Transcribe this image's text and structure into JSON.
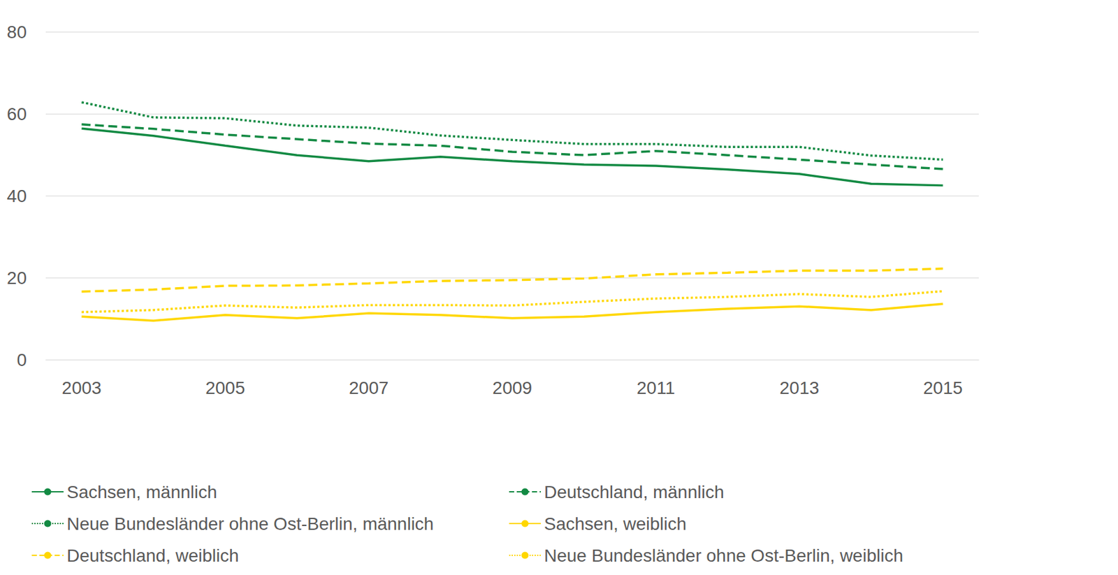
{
  "chart_data": {
    "type": "line",
    "categories": [
      2003,
      null,
      2005,
      null,
      2007,
      null,
      2009,
      null,
      2011,
      null,
      2013,
      null,
      2015
    ],
    "ylim": [
      0,
      80
    ],
    "yticks": [
      0,
      20,
      40,
      60,
      80
    ],
    "grid": true,
    "legend": "bottom",
    "series": [
      {
        "name": "Sachsen, männlich",
        "color": "#138a43",
        "line_style": "solid",
        "values": [
          56.4,
          54.6,
          52.2,
          49.9,
          48.4,
          49.5,
          48.4,
          47.6,
          47.3,
          46.4,
          45.3,
          42.9,
          42.5
        ]
      },
      {
        "name": "Deutschland, männlich",
        "color": "#138a43",
        "line_style": "dashed",
        "values": [
          57.4,
          56.3,
          54.9,
          53.8,
          52.7,
          52.2,
          50.7,
          49.9,
          50.9,
          49.9,
          48.8,
          47.6,
          46.5
        ]
      },
      {
        "name": "Neue Bundesländer ohne Ost-Berlin, männlich",
        "color": "#138a43",
        "line_style": "dotted",
        "values": [
          62.8,
          59.1,
          58.9,
          57.1,
          56.6,
          54.7,
          53.6,
          52.6,
          52.6,
          51.9,
          51.9,
          49.8,
          48.8
        ]
      },
      {
        "name": "Sachsen, weiblich",
        "color": "#ffd700",
        "line_style": "solid",
        "values": [
          10.5,
          9.5,
          10.9,
          10.1,
          11.3,
          10.9,
          10.1,
          10.5,
          11.6,
          12.4,
          13.0,
          12.1,
          13.6
        ]
      },
      {
        "name": "Deutschland, weiblich",
        "color": "#ffd700",
        "line_style": "dashed",
        "values": [
          16.6,
          17.1,
          18.0,
          18.1,
          18.6,
          19.2,
          19.4,
          19.8,
          20.8,
          21.2,
          21.7,
          21.7,
          22.2
        ]
      },
      {
        "name": "Neue Bundesländer ohne Ost-Berlin, weiblich",
        "color": "#ffd700",
        "line_style": "dotted",
        "values": [
          11.6,
          12.1,
          13.2,
          12.7,
          13.3,
          13.3,
          13.2,
          14.1,
          14.9,
          15.3,
          16.0,
          15.3,
          16.7
        ]
      }
    ]
  }
}
